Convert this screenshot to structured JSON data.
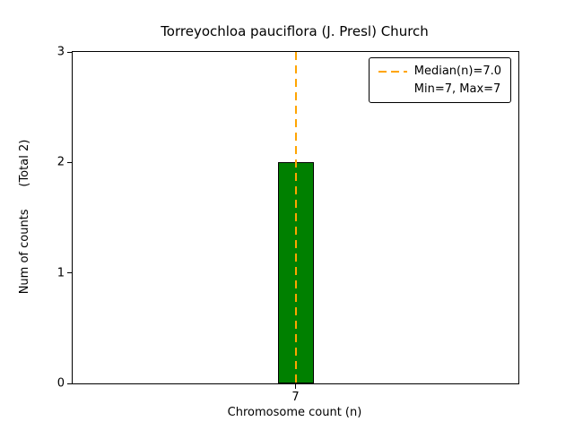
{
  "chart_data": {
    "type": "bar",
    "title": "Torreyochloa pauciflora (J. Presl) Church",
    "xlabel": "Chromosome count (n)",
    "ylabel": "Num of counts      (Total 2)",
    "categories": [
      "7"
    ],
    "values": [
      2
    ],
    "ylim": [
      0,
      3
    ],
    "yticks": [
      0,
      1,
      2,
      3
    ],
    "bar_color": "#008000",
    "bar_edge_color": "#000000",
    "median_line": {
      "x": "7",
      "value": 7.0,
      "color": "#FFA500",
      "style": "dashed"
    },
    "legend": {
      "position": "upper right",
      "entries": [
        {
          "symbol": "dashed-line",
          "color": "#FFA500",
          "label": "Median(n)=7.0"
        },
        {
          "symbol": "none",
          "label": "Min=7, Max=7"
        }
      ]
    }
  }
}
